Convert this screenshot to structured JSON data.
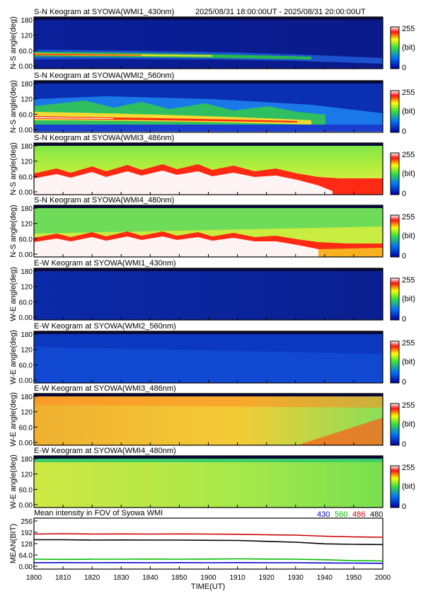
{
  "header": {
    "time_range": "2025/08/31 18:00:00UT - 2025/08/31 20:00:00UT"
  },
  "colorbar": {
    "max_label": "255",
    "unit_label": "(bit)",
    "min_label": "0"
  },
  "panels": [
    {
      "title": "S-N Keogram at SYOWA(WMI1_430nm)",
      "ylabel": "N-S angle(deg)",
      "ticks": [
        "180",
        "120",
        "60.0",
        "0.00"
      ]
    },
    {
      "title": "S-N Keogram at SYOWA(WMI2_560nm)",
      "ylabel": "N-S angle(deg)",
      "ticks": [
        "180",
        "120",
        "60.0",
        "0.00"
      ]
    },
    {
      "title": "S-N Keogram at SYOWA(WMI3_486nm)",
      "ylabel": "N-S angle(deg)",
      "ticks": [
        "180",
        "120",
        "60.0",
        "0.00"
      ]
    },
    {
      "title": "S-N Keogram at SYOWA(WMI4_480nm)",
      "ylabel": "N-S angle(deg)",
      "ticks": [
        "180",
        "120",
        "60.0",
        "0.00"
      ]
    },
    {
      "title": "E-W Keogram at SYOWA(WMI1_430nm)",
      "ylabel": "W-E angle(deg)",
      "ticks": [
        "180",
        "120",
        "60.0",
        "0.00"
      ]
    },
    {
      "title": "E-W Keogram at SYOWA(WMI2_560nm)",
      "ylabel": "W-E angle(deg)",
      "ticks": [
        "180",
        "120",
        "60.0",
        "0.00"
      ]
    },
    {
      "title": "E-W Keogram at SYOWA(WMI3_486nm)",
      "ylabel": "W-E angle(deg)",
      "ticks": [
        "180",
        "120",
        "60.0",
        "0.00"
      ]
    },
    {
      "title": "E-W Keogram at SYOWA(WMI4_480nm)",
      "ylabel": "W-E angle(deg)",
      "ticks": [
        "180",
        "120",
        "60.0",
        "0.00"
      ]
    }
  ],
  "chart_data": {
    "type": "line",
    "title": "Mean intensity in FOV of Syowa WMI",
    "xlabel": "TIME(UT)",
    "ylabel": "MEAN(BIT)",
    "xlim": [
      1800,
      2000
    ],
    "ylim": [
      0,
      256
    ],
    "x_ticks": [
      "1800",
      "1810",
      "1820",
      "1830",
      "1840",
      "1850",
      "1900",
      "1910",
      "1920",
      "1930",
      "1940",
      "1950",
      "2000"
    ],
    "y_ticks": [
      "256",
      "192",
      "128",
      "64.0",
      "0.00"
    ],
    "x_hours": [
      0,
      0.167,
      0.333,
      0.5,
      0.667,
      0.833,
      1.0,
      1.167,
      1.333,
      1.5,
      1.667,
      1.833,
      2.0
    ],
    "series": [
      {
        "name": "430",
        "color": "#0000cc",
        "values": [
          20,
          21,
          20,
          21,
          20,
          21,
          20,
          21,
          20,
          20,
          19,
          18,
          17
        ]
      },
      {
        "name": "560",
        "color": "#00bb00",
        "values": [
          40,
          39,
          40,
          40,
          41,
          40,
          41,
          42,
          41,
          40,
          37,
          32,
          30
        ]
      },
      {
        "name": "486",
        "color": "#cc0000",
        "values": [
          182,
          184,
          182,
          183,
          182,
          183,
          182,
          181,
          178,
          176,
          170,
          166,
          164
        ]
      },
      {
        "name": "480",
        "color": "#000000",
        "values": [
          150,
          150,
          148,
          149,
          148,
          148,
          147,
          146,
          141,
          136,
          127,
          124,
          123
        ]
      }
    ]
  }
}
